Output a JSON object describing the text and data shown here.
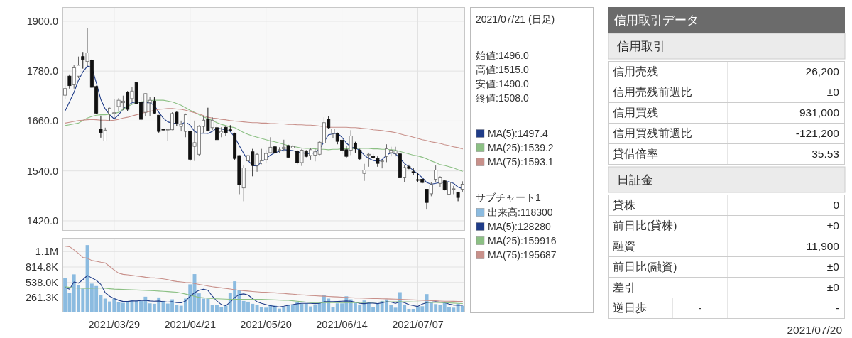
{
  "chart_data": [
    {
      "type": "candlestick",
      "tick_labels": "y",
      "grid": true,
      "legend": "right",
      "categories": [
        null,
        null,
        null,
        null,
        null,
        null,
        null,
        null,
        null,
        null,
        null,
        "2021/03/29",
        null,
        null,
        null,
        null,
        null,
        null,
        null,
        null,
        null,
        null,
        null,
        null,
        null,
        null,
        null,
        null,
        "2021/04/21",
        null,
        null,
        null,
        null,
        null,
        null,
        null,
        null,
        null,
        null,
        null,
        null,
        null,
        null,
        null,
        null,
        "2021/05/20",
        null,
        null,
        null,
        null,
        null,
        null,
        null,
        null,
        null,
        null,
        null,
        null,
        null,
        null,
        null,
        null,
        "2021/06/14",
        null,
        null,
        null,
        null,
        null,
        null,
        null,
        null,
        null,
        null,
        null,
        null,
        null,
        null,
        null,
        null,
        "2021/07/07",
        null,
        null,
        null,
        null,
        null,
        null,
        null,
        null,
        null,
        null
      ],
      "ohlc": [
        [
          1722,
          1769,
          1712,
          1738
        ],
        [
          1768,
          1772,
          1738,
          1745
        ],
        [
          1747,
          1795,
          1738,
          1788
        ],
        [
          1768,
          1815,
          1763,
          1794
        ],
        [
          1815,
          1826,
          1786,
          1808
        ],
        [
          1803,
          1883,
          1792,
          1824
        ],
        [
          1806,
          1808,
          1740,
          1741
        ],
        [
          1743,
          1745,
          1677,
          1679
        ],
        [
          1641,
          1673,
          1620,
          1632
        ],
        [
          1612,
          1644,
          1612,
          1638
        ],
        [
          1677,
          1692,
          1661,
          1691
        ],
        [
          1678,
          1712,
          1667,
          1680
        ],
        [
          1695,
          1715,
          1684,
          1710
        ],
        [
          1704,
          1721,
          1686,
          1708
        ],
        [
          1730,
          1732,
          1684,
          1688
        ],
        [
          1714,
          1741,
          1706,
          1732
        ],
        [
          1752,
          1753,
          1700,
          1701
        ],
        [
          1706,
          1718,
          1661,
          1664
        ],
        [
          1681,
          1726,
          1672,
          1726
        ],
        [
          1704,
          1718,
          1672,
          1710
        ],
        [
          1708,
          1717,
          1678,
          1679
        ],
        [
          1674,
          1674,
          1632,
          1635
        ],
        [
          1640,
          1641,
          1638,
          1639
        ],
        [
          1639,
          1641,
          1612,
          1640
        ],
        [
          1639,
          1681,
          1638,
          1678
        ],
        [
          1681,
          1684,
          1647,
          1655
        ],
        [
          1647,
          1661,
          1635,
          1652
        ],
        [
          1635,
          1678,
          1621,
          1675
        ],
        [
          1635,
          1635,
          1564,
          1568
        ],
        [
          1599,
          1661,
          1564,
          1608
        ],
        [
          1580,
          1650,
          1577,
          1647
        ],
        [
          1647,
          1671,
          1632,
          1662
        ],
        [
          1665,
          1692,
          1635,
          1637
        ],
        [
          1644,
          1669,
          1638,
          1662
        ],
        [
          1644,
          1661,
          1615,
          1615
        ],
        [
          1631,
          1645,
          1621,
          1635
        ],
        [
          1645,
          1647,
          1624,
          1632
        ],
        [
          1639,
          1650,
          1635,
          1638
        ],
        [
          1631,
          1632,
          1567,
          1570
        ],
        [
          1577,
          1578,
          1484,
          1507
        ],
        [
          1499,
          1553,
          1467,
          1547
        ],
        [
          1564,
          1587,
          1558,
          1577
        ],
        [
          1586,
          1593,
          1527,
          1553
        ],
        [
          1553,
          1584,
          1538,
          1580
        ],
        [
          1559,
          1593,
          1556,
          1564
        ],
        [
          1567,
          1590,
          1558,
          1582
        ],
        [
          1584,
          1621,
          1582,
          1597
        ],
        [
          1598,
          1601,
          1582,
          1584
        ],
        [
          1590,
          1597,
          1584,
          1591
        ],
        [
          1593,
          1615,
          1587,
          1597
        ],
        [
          1601,
          1603,
          1571,
          1573
        ],
        [
          1595,
          1603,
          1593,
          1599
        ],
        [
          1587,
          1590,
          1556,
          1560
        ],
        [
          1560,
          1593,
          1552,
          1590
        ],
        [
          1587,
          1590,
          1573,
          1575
        ],
        [
          1577,
          1594,
          1567,
          1591
        ],
        [
          1578,
          1593,
          1563,
          1586
        ],
        [
          1580,
          1611,
          1578,
          1609
        ],
        [
          1607,
          1669,
          1607,
          1656
        ],
        [
          1664,
          1672,
          1641,
          1644
        ],
        [
          1630,
          1641,
          1618,
          1641
        ],
        [
          1631,
          1632,
          1604,
          1611
        ],
        [
          1614,
          1621,
          1581,
          1590
        ],
        [
          1591,
          1601,
          1571,
          1575
        ],
        [
          1590,
          1638,
          1578,
          1624
        ],
        [
          1607,
          1610,
          1584,
          1593
        ],
        [
          1590,
          1593,
          1567,
          1569
        ],
        [
          1534,
          1557,
          1516,
          1542
        ],
        [
          1579,
          1584,
          1550,
          1580
        ],
        [
          1575,
          1581,
          1569,
          1571
        ],
        [
          1570,
          1575,
          1550,
          1558
        ],
        [
          1563,
          1567,
          1546,
          1564
        ],
        [
          1575,
          1604,
          1561,
          1593
        ],
        [
          1584,
          1598,
          1575,
          1590
        ],
        [
          1582,
          1598,
          1575,
          1588
        ],
        [
          1581,
          1582,
          1525,
          1525
        ],
        [
          1525,
          1555,
          1513,
          1548
        ],
        [
          1550,
          1555,
          1544,
          1546
        ],
        [
          1538,
          1547,
          1530,
          1537
        ],
        [
          1519,
          1536,
          1514,
          1518
        ],
        [
          1520,
          1521,
          1510,
          1512
        ],
        [
          1496,
          1496,
          1447,
          1464
        ],
        [
          1485,
          1513,
          1479,
          1507
        ],
        [
          1520,
          1553,
          1513,
          1542
        ],
        [
          1510,
          1527,
          1501,
          1525
        ],
        [
          1516,
          1517,
          1493,
          1495
        ],
        [
          1484,
          1516,
          1481,
          1513
        ],
        [
          1496,
          1504,
          1484,
          1497
        ],
        [
          1489,
          1490,
          1467,
          1476
        ],
        [
          1496,
          1515,
          1490,
          1508
        ]
      ],
      "series": [
        {
          "type": "line",
          "name": "MA(5):1497.4",
          "color": "#1f3c88",
          "values": [
            1684,
            1706,
            1729,
            1758,
            1778,
            1792,
            1789,
            1752,
            1712,
            1689,
            1675,
            1665,
            1675,
            1689,
            1698,
            1704,
            1706,
            1704,
            1704,
            1704,
            1698,
            1681,
            1667,
            1658,
            1655,
            1654,
            1652,
            1658,
            1650,
            1635,
            1630,
            1631,
            1630,
            1635,
            1643,
            1641,
            1638,
            1635,
            1621,
            1601,
            1582,
            1565,
            1553,
            1552,
            1561,
            1570,
            1578,
            1584,
            1587,
            1591,
            1590,
            1589,
            1586,
            1584,
            1582,
            1582,
            1584,
            1593,
            1610,
            1627,
            1629,
            1631,
            1621,
            1607,
            1598,
            1595,
            1590,
            1578,
            1570,
            1565,
            1563,
            1567,
            1578,
            1584,
            1581,
            1570,
            1558,
            1550,
            1541,
            1533,
            1524,
            1512,
            1508,
            1510,
            1512,
            1513,
            1514,
            1510,
            1501,
            1497.4
          ]
        },
        {
          "type": "line",
          "name": "MA(25):1539.2",
          "color": "#8cc084",
          "values": [
            1649,
            1651,
            1653,
            1655,
            1661,
            1667,
            1671,
            1674,
            1675,
            1675,
            1676,
            1678,
            1681,
            1688,
            1695,
            1700,
            1704,
            1706,
            1708,
            1709,
            1710,
            1710,
            1710,
            1708,
            1706,
            1702,
            1698,
            1692,
            1686,
            1681,
            1675,
            1670,
            1666,
            1661,
            1656,
            1652,
            1649,
            1646,
            1644,
            1638,
            1632,
            1628,
            1624,
            1621,
            1618,
            1615,
            1612,
            1610,
            1607,
            1604,
            1601,
            1599,
            1597,
            1595,
            1594,
            1594,
            1593,
            1592,
            1592,
            1591,
            1592,
            1592,
            1593,
            1593,
            1593,
            1594,
            1594,
            1594,
            1594,
            1593,
            1593,
            1592,
            1592,
            1591,
            1590,
            1587,
            1584,
            1581,
            1578,
            1576,
            1573,
            1569,
            1564,
            1560,
            1555,
            1553,
            1550,
            1547,
            1543,
            1539.2
          ]
        },
        {
          "type": "line",
          "name": "MA(75):1593.1",
          "color": "#c8908a",
          "values": [
            1655,
            1657,
            1659,
            1661,
            1662,
            1663,
            1664,
            1663,
            1662,
            1662,
            1661,
            1662,
            1664,
            1667,
            1669,
            1672,
            1675,
            1678,
            1681,
            1683,
            1686,
            1688,
            1689,
            1690,
            1690,
            1689,
            1688,
            1686,
            1683,
            1680,
            1677,
            1673,
            1669,
            1667,
            1666,
            1664,
            1663,
            1661,
            1660,
            1659,
            1658,
            1657,
            1656,
            1656,
            1655,
            1655,
            1654,
            1654,
            1653,
            1653,
            1652,
            1652,
            1651,
            1651,
            1650,
            1650,
            1649,
            1648,
            1646,
            1645,
            1645,
            1645,
            1645,
            1645,
            1644,
            1644,
            1643,
            1642,
            1641,
            1639,
            1638,
            1637,
            1635,
            1634,
            1632,
            1629,
            1626,
            1624,
            1621,
            1618,
            1615,
            1613,
            1610,
            1608,
            1606,
            1603,
            1601,
            1598,
            1596,
            1593.1
          ]
        }
      ],
      "ylim": [
        1396,
        1934
      ],
      "yticks": [
        {
          "value": 1420,
          "label": "1420.0"
        },
        {
          "value": 1540,
          "label": "1540.0"
        },
        {
          "value": 1660,
          "label": "1660.0"
        },
        {
          "value": 1780,
          "label": "1780.0"
        },
        {
          "value": 1900,
          "label": "1900.0"
        }
      ],
      "annotations": [
        "2021/07/21 (日足)",
        "始値:1496.0",
        "高値:1515.0",
        "安値:1490.0",
        "終値:1508.0"
      ]
    },
    {
      "type": "bar",
      "grid": true,
      "legend": "right",
      "legend_title": "サブチャート1",
      "categories": [
        null,
        null,
        null,
        null,
        null,
        null,
        null,
        null,
        null,
        null,
        null,
        "2021/03/29",
        null,
        null,
        null,
        null,
        null,
        null,
        null,
        null,
        null,
        null,
        null,
        null,
        null,
        null,
        null,
        null,
        "2021/04/21",
        null,
        null,
        null,
        null,
        null,
        null,
        null,
        null,
        null,
        null,
        null,
        null,
        null,
        null,
        null,
        null,
        "2021/05/20",
        null,
        null,
        null,
        null,
        null,
        null,
        null,
        null,
        null,
        null,
        null,
        null,
        null,
        null,
        null,
        null,
        "2021/06/14",
        null,
        null,
        null,
        null,
        null,
        null,
        null,
        null,
        null,
        null,
        null,
        null,
        null,
        null,
        null,
        null,
        "2021/07/07",
        null,
        null,
        null,
        null,
        null,
        null,
        null,
        null,
        null,
        null
      ],
      "series": [
        {
          "name": "出来高:118300",
          "color": "#8bbbe0",
          "values": [
            619000,
            354000,
            683000,
            495000,
            427000,
            1208000,
            517000,
            474000,
            312000,
            248000,
            196000,
            248000,
            184000,
            171000,
            192000,
            226000,
            205000,
            205000,
            282000,
            162000,
            154000,
            269000,
            205000,
            158000,
            235000,
            132000,
            120000,
            248000,
            504000,
            687000,
            342000,
            248000,
            248000,
            132000,
            132000,
            102000,
            120000,
            354000,
            559000,
            397000,
            205000,
            192000,
            154000,
            128000,
            90000,
            85000,
            141000,
            120000,
            68000,
            98000,
            141000,
            132000,
            192000,
            154000,
            158000,
            107000,
            128000,
            171000,
            312000,
            248000,
            98000,
            162000,
            162000,
            290000,
            235000,
            175000,
            141000,
            214000,
            184000,
            90000,
            162000,
            205000,
            235000,
            132000,
            85000,
            363000,
            141000,
            64000,
            64000,
            107000,
            111000,
            329000,
            184000,
            149000,
            132000,
            175000,
            98000,
            85000,
            158000,
            118300
          ]
        },
        {
          "type": "line",
          "name": "MA(5):128280",
          "color": "#1f3c88",
          "values": [
            448000,
            418000,
            547000,
            525000,
            589000,
            662000,
            619000,
            576000,
            504000,
            354000,
            290000,
            248000,
            218000,
            196000,
            196000,
            205000,
            205000,
            214000,
            218000,
            205000,
            201000,
            205000,
            192000,
            184000,
            192000,
            175000,
            171000,
            205000,
            290000,
            354000,
            397000,
            418000,
            397000,
            290000,
            205000,
            141000,
            120000,
            184000,
            269000,
            320000,
            333000,
            312000,
            248000,
            192000,
            162000,
            141000,
            120000,
            107000,
            98000,
            111000,
            128000,
            141000,
            154000,
            162000,
            162000,
            162000,
            158000,
            162000,
            192000,
            192000,
            192000,
            196000,
            201000,
            205000,
            201000,
            184000,
            162000,
            158000,
            167000,
            167000,
            158000,
            171000,
            192000,
            184000,
            162000,
            192000,
            175000,
            141000,
            120000,
            107000,
            149000,
            175000,
            184000,
            192000,
            184000,
            175000,
            149000,
            132000,
            128000,
            128280
          ]
        },
        {
          "type": "line",
          "name": "MA(25):159916",
          "color": "#8cc084",
          "values": [
            461000,
            450000,
            440000,
            437000,
            434000,
            431000,
            434000,
            437000,
            440000,
            433000,
            425000,
            418000,
            415000,
            412000,
            409000,
            406000,
            403000,
            399000,
            396000,
            392000,
            389000,
            384000,
            379000,
            374000,
            368000,
            363000,
            346000,
            329000,
            312000,
            290000,
            269000,
            262000,
            255000,
            248000,
            245000,
            241000,
            238000,
            235000,
            235000,
            235000,
            235000,
            235000,
            235000,
            235000,
            235000,
            232000,
            228000,
            225000,
            221000,
            218000,
            218000,
            209000,
            201000,
            192000,
            184000,
            175000,
            175000,
            175000,
            175000,
            175000,
            175000,
            175000,
            175000,
            175000,
            175000,
            175000,
            177000,
            179000,
            181000,
            182000,
            184000,
            186000,
            187000,
            189000,
            190000,
            192000,
            190000,
            189000,
            187000,
            186000,
            184000,
            182000,
            180000,
            179000,
            177000,
            175000,
            171000,
            167000,
            163000,
            159916
          ]
        },
        {
          "type": "line",
          "name": "MA(75):195687",
          "color": "#c8908a",
          "values": [
            1187000,
            1179000,
            1123000,
            1059000,
            986000,
            974000,
            931000,
            918000,
            901000,
            888000,
            824000,
            760000,
            705000,
            683000,
            675000,
            666000,
            653000,
            645000,
            632000,
            623000,
            619000,
            611000,
            602000,
            589000,
            568000,
            555000,
            547000,
            538000,
            534000,
            519000,
            504000,
            490000,
            475000,
            461000,
            451000,
            441000,
            431000,
            420000,
            408000,
            397000,
            390000,
            383000,
            376000,
            370000,
            363000,
            363000,
            357000,
            352000,
            346000,
            340000,
            333000,
            327000,
            320000,
            315000,
            310000,
            304000,
            299000,
            295000,
            291000,
            286000,
            282000,
            278000,
            273000,
            269000,
            264000,
            260000,
            258000,
            255000,
            253000,
            250000,
            248000,
            245000,
            243000,
            240000,
            238000,
            235000,
            232000,
            228000,
            225000,
            221000,
            218000,
            215000,
            211000,
            208000,
            204000,
            201000,
            200000,
            199000,
            197000,
            195687
          ]
        }
      ],
      "ylim": [
        0,
        1337000
      ],
      "yticks": [
        {
          "value": 261300,
          "label": "261.3K"
        },
        {
          "value": 538000,
          "label": "538.0K"
        },
        {
          "value": 814800,
          "label": "814.8K"
        },
        {
          "value": 1091500,
          "label": "1.1M"
        }
      ]
    },
    {
      "type": "other",
      "title": "信用取引データ",
      "subtitle": "信用取引",
      "categories": [
        "信用売残",
        "信用売残前週比",
        "信用買残",
        "信用買残前週比",
        "貸借倍率"
      ],
      "value_labels": [
        "26,200",
        "±0",
        "931,000",
        "-121,200",
        "35.53"
      ]
    },
    {
      "type": "other",
      "subtitle": "日証金",
      "categories": [
        "貸株",
        "前日比(貸株)",
        "融資",
        "前日比(融資)",
        "差引",
        "逆日歩"
      ],
      "value_labels": [
        "0",
        "±0",
        "11,900",
        "±0",
        "±0",
        "-"
      ],
      "annotations": [
        "-",
        "2021/07/20"
      ]
    }
  ]
}
